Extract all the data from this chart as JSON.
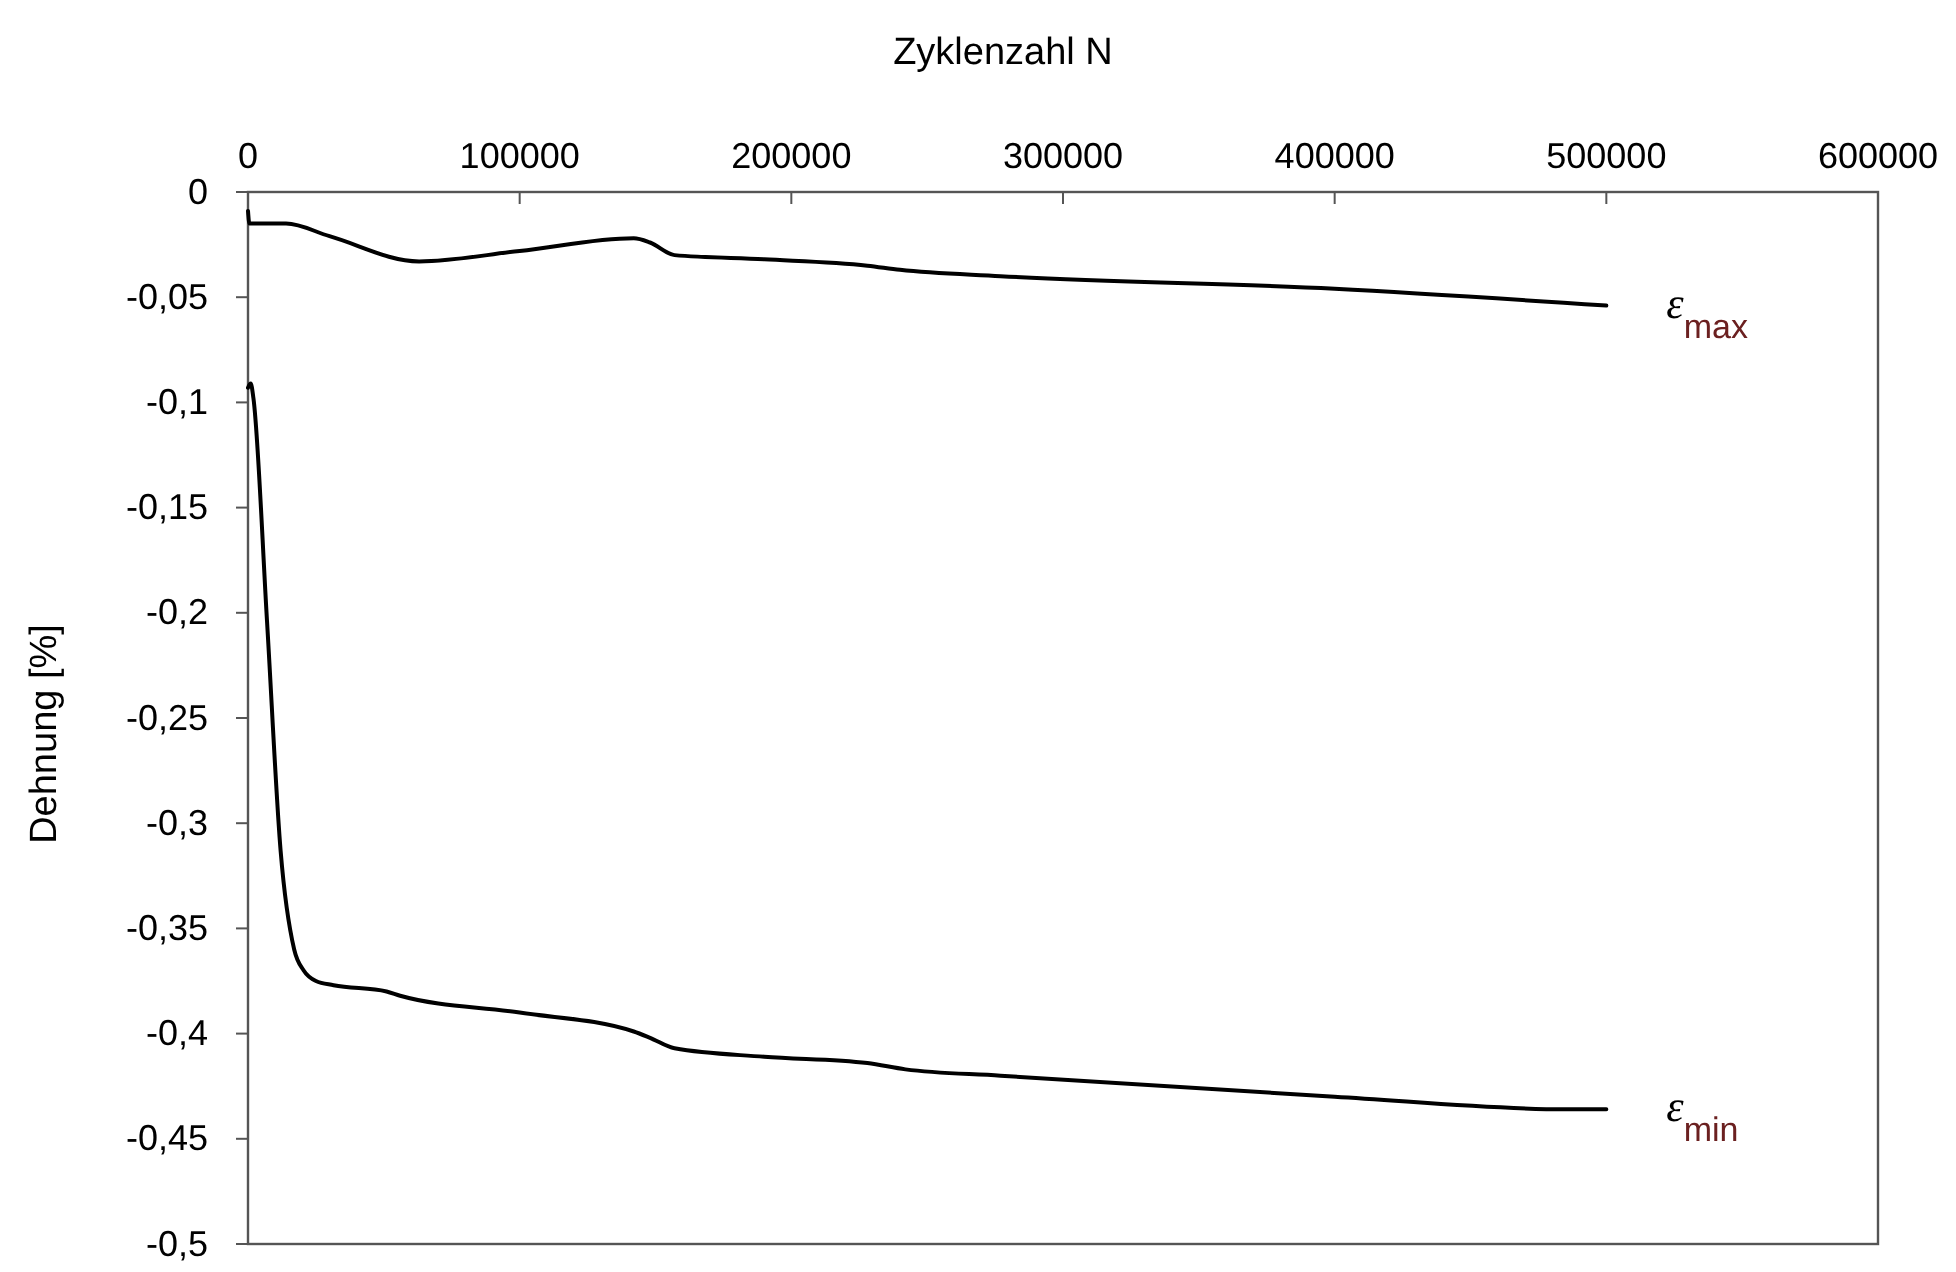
{
  "chart_data": {
    "type": "line",
    "xlabel": "Zyklenzahl N",
    "ylabel": "Dehnung [%]",
    "xlim": [
      0,
      600000
    ],
    "xticks": [
      0,
      100000,
      200000,
      300000,
      400000,
      500000,
      600000
    ],
    "ylim": [
      -0.5,
      0
    ],
    "yticks": [
      {
        "value": 0,
        "label": "0"
      },
      {
        "value": -0.05,
        "label": "-0,05"
      },
      {
        "value": -0.1,
        "label": "-0,1"
      },
      {
        "value": -0.15,
        "label": "-0,15"
      },
      {
        "value": -0.2,
        "label": "-0,2"
      },
      {
        "value": -0.25,
        "label": "-0,25"
      },
      {
        "value": -0.3,
        "label": "-0,3"
      },
      {
        "value": -0.35,
        "label": "-0,35"
      },
      {
        "value": -0.4,
        "label": "-0,4"
      },
      {
        "value": -0.45,
        "label": "-0,45"
      },
      {
        "value": -0.5,
        "label": "-0,5"
      }
    ],
    "grid": false,
    "legend": false,
    "marker": "none",
    "line_style": "solid",
    "series": [
      {
        "name": "ε$_{max}$",
        "color": "#000000",
        "x": [
          0,
          500,
          14000,
          30000,
          63000,
          100000,
          142000,
          148000,
          157000,
          190000,
          228000,
          240000,
          277000,
          400000,
          500000
        ],
        "values": [
          -0.009,
          -0.015,
          -0.015,
          -0.021,
          -0.033,
          -0.028,
          -0.022,
          -0.024,
          -0.03,
          -0.032,
          -0.035,
          -0.037,
          -0.04,
          -0.046,
          -0.054
        ]
      },
      {
        "name": "ε$_{min}$",
        "color": "#000000",
        "x": [
          0,
          1000,
          2000,
          7000,
          12000,
          17000,
          20500,
          25000,
          31500,
          51000,
          56000,
          100000,
          142000,
          148000,
          157000,
          190000,
          228000,
          242000,
          277000,
          400000,
          485000,
          500000
        ],
        "values": [
          -0.093,
          -0.091,
          -0.098,
          -0.204,
          -0.313,
          -0.36,
          -0.37,
          -0.375,
          -0.377,
          -0.38,
          -0.382,
          -0.39,
          -0.399,
          -0.402,
          -0.407,
          -0.411,
          -0.414,
          -0.417,
          -0.42,
          -0.43,
          -0.436,
          -0.436
        ]
      }
    ]
  }
}
